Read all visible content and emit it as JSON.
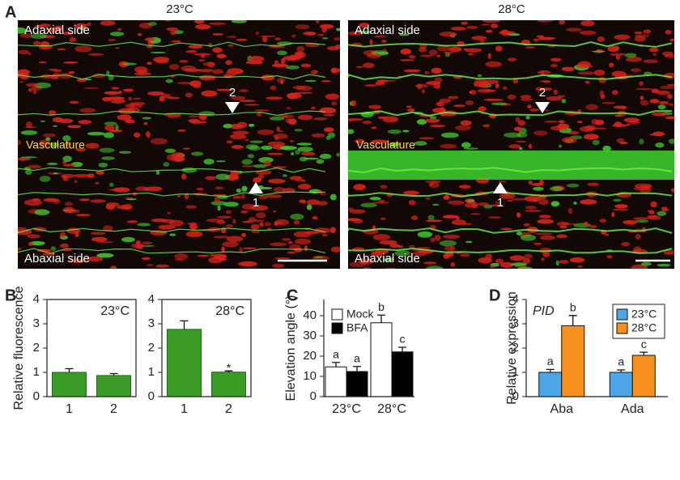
{
  "panel_a": {
    "label": "A",
    "images": [
      {
        "title": "23°C",
        "top": "Adaxial side",
        "middle": "Vasculature",
        "bottom": "Abaxial side",
        "arrows": [
          "2",
          "1"
        ]
      },
      {
        "title": "28°C",
        "top": "Adaxial side",
        "middle": "Vasculature",
        "bottom": "Abaxial side",
        "arrows": [
          "2",
          "1"
        ]
      }
    ]
  },
  "chart_data": [
    {
      "type": "bar",
      "panel": "B",
      "title": "23°C",
      "y_label": "Relative fluorescence",
      "categories": [
        "1",
        "2"
      ],
      "values": [
        1.0,
        0.87
      ],
      "errors": [
        0.15,
        0.08
      ],
      "color": "#3a9b27",
      "ylim": [
        0,
        4
      ],
      "yticks": [
        0,
        1,
        2,
        3,
        4
      ]
    },
    {
      "type": "bar",
      "title": "28°C",
      "categories": [
        "1",
        "2"
      ],
      "values": [
        2.77,
        1.01
      ],
      "errors": [
        0.35,
        0.05
      ],
      "annotations": [
        null,
        "*"
      ],
      "color": "#3a9b27",
      "ylim": [
        0,
        4
      ],
      "yticks": [
        0,
        1,
        2,
        3,
        4
      ]
    },
    {
      "type": "bar",
      "panel": "C",
      "y_label": "Elevation angle (°)",
      "categories": [
        "23°C",
        "28°C"
      ],
      "series": [
        {
          "name": "Mock",
          "color": "#ffffff",
          "values": [
            14.7,
            36.5
          ],
          "errors": [
            2.2,
            3.8
          ],
          "annotations": [
            "a",
            "b"
          ]
        },
        {
          "name": "BFA",
          "color": "#000000",
          "values": [
            12.4,
            22.1
          ],
          "errors": [
            2.5,
            2.3
          ],
          "annotations": [
            "a",
            "c"
          ]
        }
      ],
      "ylim": [
        0,
        48
      ],
      "yticks": [
        0,
        10,
        20,
        30,
        40
      ],
      "legend": "top-left"
    },
    {
      "type": "bar",
      "panel": "D",
      "title": "PID",
      "y_label": "Relative expression",
      "categories": [
        "Aba",
        "Ada"
      ],
      "series": [
        {
          "name": "23°C",
          "color": "#4da6e8",
          "values": [
            1.0,
            1.0
          ],
          "errors": [
            0.12,
            0.1
          ],
          "annotations": [
            "a",
            "a"
          ]
        },
        {
          "name": "28°C",
          "color": "#f7901e",
          "values": [
            2.92,
            1.7
          ],
          "errors": [
            0.42,
            0.13
          ],
          "annotations": [
            "b",
            "c"
          ]
        }
      ],
      "ylim": [
        0,
        4
      ],
      "yticks": [
        0,
        1,
        2,
        3,
        4
      ],
      "legend": "top-right"
    }
  ]
}
